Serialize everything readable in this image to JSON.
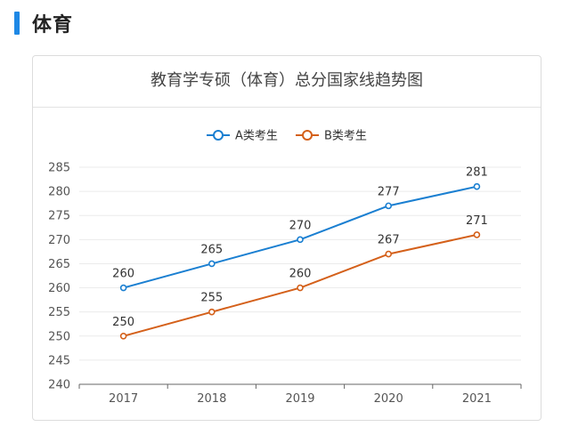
{
  "section": {
    "title": "体育",
    "accent": "#1e88e5"
  },
  "chart_data": {
    "type": "line",
    "title": "教育学专硕（体育）总分国家线趋势图",
    "categories": [
      "2017",
      "2018",
      "2019",
      "2020",
      "2021"
    ],
    "series": [
      {
        "name": "A类考生",
        "values": [
          260,
          265,
          270,
          277,
          281
        ],
        "color": "#1a7fd1"
      },
      {
        "name": "B类考生",
        "values": [
          250,
          255,
          260,
          267,
          271
        ],
        "color": "#d4601a"
      }
    ],
    "ylim": [
      240,
      285
    ],
    "yticks": [
      240,
      245,
      250,
      255,
      260,
      265,
      270,
      275,
      280,
      285
    ],
    "xlabel": "",
    "ylabel": "",
    "grid": true,
    "legend_position": "top-center"
  }
}
